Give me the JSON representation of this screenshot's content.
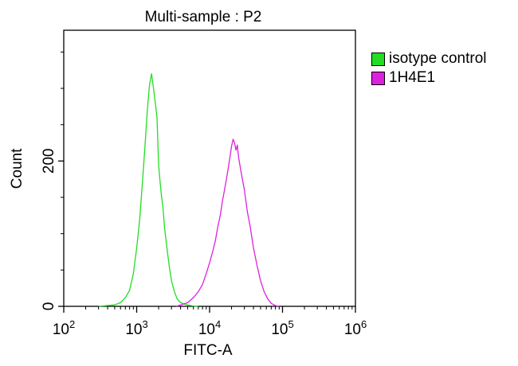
{
  "chart_data": {
    "type": "area",
    "title": "Multi-sample : P2",
    "xlabel": "FITC-A",
    "ylabel": "Count",
    "x_scale": "log",
    "xlim": [
      100,
      1000000
    ],
    "ylim": [
      0,
      380
    ],
    "x_ticks": [
      {
        "base": "10",
        "exp": "2",
        "value": 100
      },
      {
        "base": "10",
        "exp": "3",
        "value": 1000
      },
      {
        "base": "10",
        "exp": "4",
        "value": 10000
      },
      {
        "base": "10",
        "exp": "5",
        "value": 100000
      },
      {
        "base": "10",
        "exp": "6",
        "value": 1000000
      }
    ],
    "y_ticks": [
      {
        "label": "0",
        "value": 0
      },
      {
        "label": "200",
        "value": 200
      }
    ],
    "grid": false,
    "legend_position": "top-right",
    "series": [
      {
        "name": "isotype control",
        "color": "#22dd22",
        "x": [
          300,
          500,
          600,
          700,
          800,
          900,
          1000,
          1100,
          1200,
          1300,
          1400,
          1500,
          1600,
          1700,
          1800,
          1900,
          2000,
          2100,
          2200,
          2300,
          2400,
          2600,
          2800,
          3000,
          3300,
          3600,
          4000,
          4500,
          5000,
          5600,
          6300,
          7000
        ],
        "y": [
          0,
          2,
          5,
          12,
          22,
          45,
          80,
          120,
          170,
          220,
          270,
          305,
          320,
          300,
          280,
          260,
          195,
          170,
          150,
          135,
          110,
          80,
          55,
          35,
          20,
          10,
          5,
          3,
          2,
          1,
          0,
          0
        ]
      },
      {
        "name": "1H4E1",
        "color": "#dd22dd",
        "x": [
          3500,
          5000,
          6000,
          7000,
          8000,
          9000,
          10000,
          11000,
          12000,
          13000,
          14000,
          15000,
          16000,
          17000,
          18000,
          19000,
          20000,
          21000,
          22000,
          23000,
          24000,
          25000,
          27000,
          30000,
          33000,
          36000,
          40000,
          45000,
          50000,
          56000,
          63000,
          70000,
          80000,
          90000
        ],
        "y": [
          0,
          5,
          12,
          20,
          30,
          45,
          60,
          75,
          90,
          110,
          125,
          145,
          160,
          175,
          190,
          205,
          220,
          230,
          225,
          215,
          222,
          205,
          185,
          160,
          130,
          110,
          80,
          55,
          35,
          20,
          10,
          4,
          1,
          0
        ]
      }
    ]
  }
}
